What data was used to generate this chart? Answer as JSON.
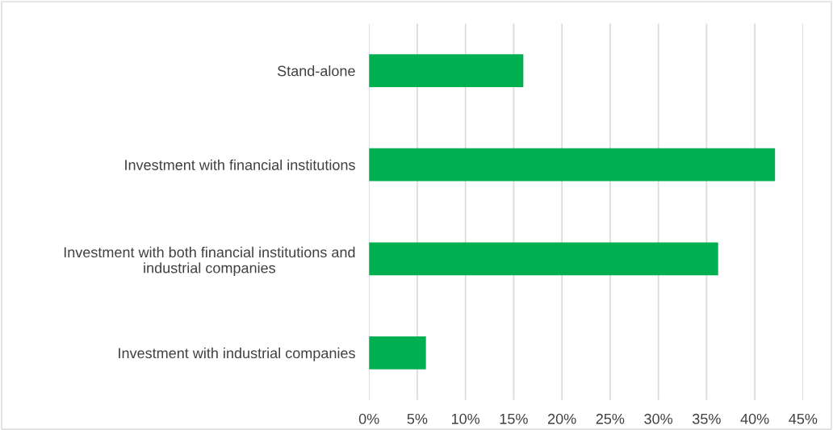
{
  "chart_data": {
    "type": "bar",
    "orientation": "horizontal",
    "categories": [
      "Stand-alone",
      "Investment with financial institutions",
      "Investment with both financial institutions and\nindustrial companies",
      "Investment with industrial companies"
    ],
    "values": [
      16,
      42.1,
      36.2,
      5.9
    ],
    "color": "#00b050",
    "xlim": [
      0,
      45
    ],
    "xticks": [
      {
        "value": 0,
        "label": "0%"
      },
      {
        "value": 5,
        "label": "5%"
      },
      {
        "value": 10,
        "label": "10%"
      },
      {
        "value": 15,
        "label": "15%"
      },
      {
        "value": 20,
        "label": "20%"
      },
      {
        "value": 25,
        "label": "25%"
      },
      {
        "value": 30,
        "label": "30%"
      },
      {
        "value": 35,
        "label": "35%"
      },
      {
        "value": 40,
        "label": "40%"
      },
      {
        "value": 45,
        "label": "45%"
      }
    ],
    "grid": "x",
    "legend": false
  }
}
